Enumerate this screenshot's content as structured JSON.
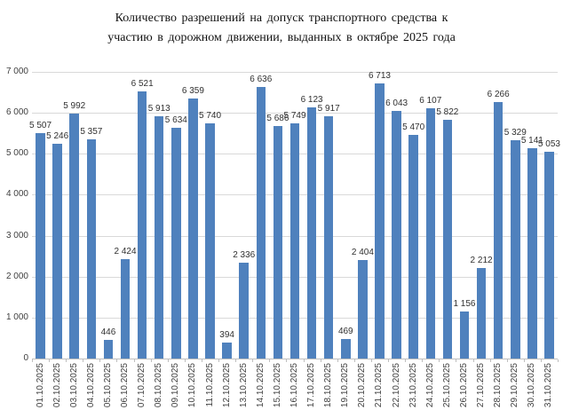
{
  "chart_data": {
    "type": "bar",
    "title": "Количество разрешений на допуск транспортного средства к участию в дорожном движении, выданных в октябре 2025 года",
    "title_lines": [
      "Количество разрешений на допуск транспортного средства к",
      "участию в дорожном движении, выданных в октябре 2025 года"
    ],
    "categories": [
      "01.10.2025",
      "02.10.2025",
      "03.10.2025",
      "04.10.2025",
      "05.10.2025",
      "06.10.2025",
      "07.10.2025",
      "08.10.2025",
      "09.10.2025",
      "10.10.2025",
      "11.10.2025",
      "12.10.2025",
      "13.10.2025",
      "14.10.2025",
      "15.10.2025",
      "16.10.2025",
      "17.10.2025",
      "18.10.2025",
      "19.10.2025",
      "20.10.2025",
      "21.10.2025",
      "22.10.2025",
      "23.10.2025",
      "24.10.2025",
      "25.10.2025",
      "26.10.2025",
      "27.10.2025",
      "28.10.2025",
      "29.10.2025",
      "30.10.2025",
      "31.10.2025"
    ],
    "values": [
      5507,
      5246,
      5992,
      5357,
      446,
      2424,
      6521,
      5913,
      5634,
      6359,
      5740,
      394,
      2336,
      6636,
      5686,
      5749,
      6123,
      5917,
      469,
      2404,
      6713,
      6043,
      5470,
      6107,
      5822,
      1156,
      2212,
      6266,
      5329,
      5141,
      5053
    ],
    "value_labels": [
      "5 507",
      "5 246",
      "5 992",
      "5 357",
      "446",
      "2 424",
      "6 521",
      "5 913",
      "5 634",
      "6 359",
      "5 740",
      "394",
      "2 336",
      "6 636",
      "5 686",
      "5 749",
      "6 123",
      "5 917",
      "469",
      "2 404",
      "6 713",
      "6 043",
      "5 470",
      "6 107",
      "5 822",
      "1 156",
      "2 212",
      "6 266",
      "5 329",
      "5 141",
      "5 053"
    ],
    "xlabel": "",
    "ylabel": "",
    "ylim": [
      0,
      7000
    ],
    "ytick_interval": 1000,
    "ytick_labels": [
      "0",
      "1 000",
      "2 000",
      "3 000",
      "4 000",
      "5 000",
      "6 000",
      "7 000"
    ],
    "grid": true,
    "legend": "none",
    "bar_color": "#4F81BD",
    "gridline_color": "#D9D9D9",
    "axis_line_color": "#BFBFBF"
  }
}
